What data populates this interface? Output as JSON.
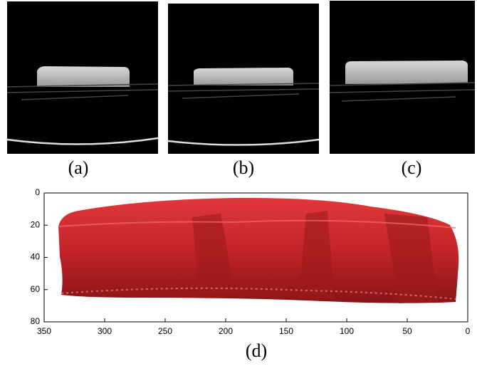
{
  "panels": [
    {
      "label": "(a)"
    },
    {
      "label": "(b)"
    },
    {
      "label": "(c)"
    }
  ],
  "plot": {
    "label": "(d)",
    "xlim": [
      350,
      0
    ],
    "ylim": [
      80,
      0
    ],
    "xticks": [
      350,
      300,
      250,
      200,
      150,
      100,
      50,
      0
    ],
    "yticks": [
      0,
      20,
      40,
      60,
      80
    ]
  }
}
